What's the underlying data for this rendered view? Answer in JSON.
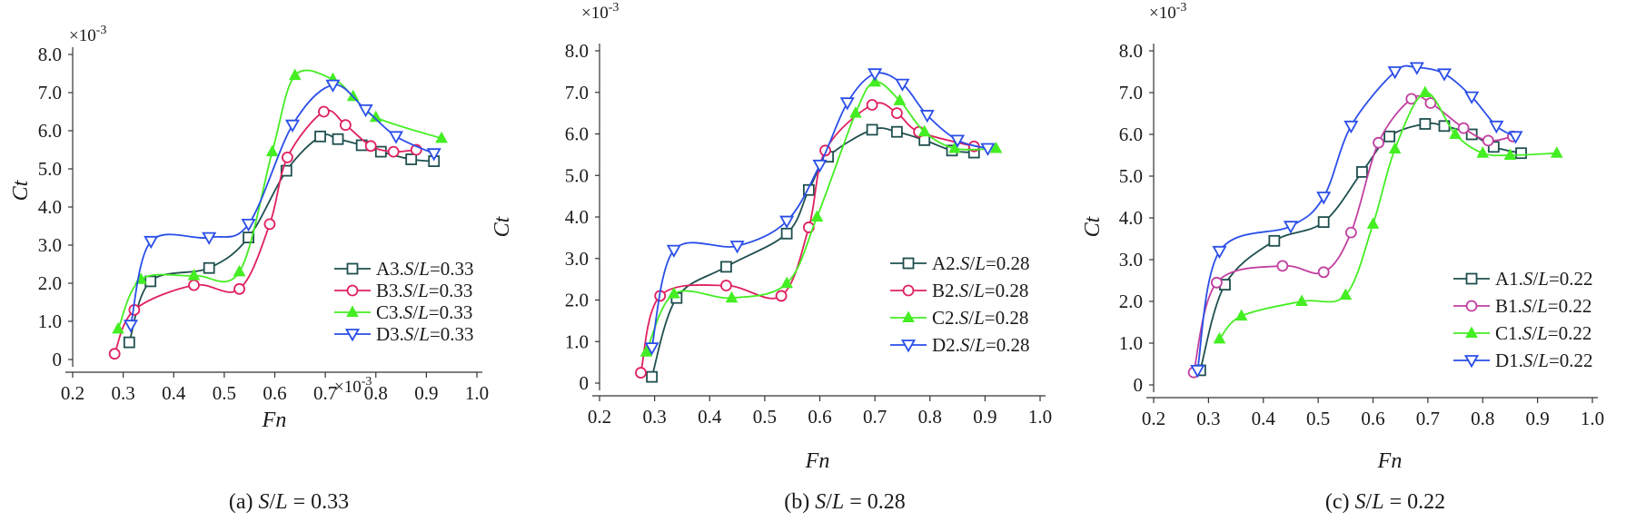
{
  "chart_data": [
    {
      "type": "line",
      "panel": "a",
      "caption_prefix": "(a) ",
      "caption_var": "S/L",
      "caption_rest": " = 0.33",
      "xlabel": "Fn",
      "ylabel": "Ct",
      "y_multiplier": "×10-3",
      "extra_multiplier": "×10-3",
      "xlim": [
        0.2,
        1.0
      ],
      "ylim": [
        0,
        8.0
      ],
      "xticks": [
        "0.2",
        "0.3",
        "0.4",
        "0.5",
        "0.6",
        "0.7",
        "0.8",
        "0.9",
        "1.0"
      ],
      "yticks": [
        "0",
        "1.0",
        "2.0",
        "3.0",
        "4.0",
        "5.0",
        "6.0",
        "7.0",
        "8.0"
      ],
      "legend_position": "lower-right",
      "series": [
        {
          "name": "A3.S/L=0.33",
          "label_prefix": "A3.",
          "label_value": "=0.33",
          "color": "#1f4f4f",
          "marker": "square",
          "x": [
            0.312,
            0.354,
            0.47,
            0.548,
            0.623,
            0.69,
            0.725,
            0.772,
            0.81,
            0.87,
            0.915
          ],
          "y": [
            0.45,
            2.05,
            2.4,
            3.2,
            4.95,
            5.85,
            5.78,
            5.62,
            5.45,
            5.25,
            5.2
          ]
        },
        {
          "name": "B3.S/L=0.33",
          "label_prefix": "B3.",
          "label_value": "=0.33",
          "color": "#e02060",
          "marker": "circle",
          "x": [
            0.283,
            0.322,
            0.44,
            0.53,
            0.59,
            0.625,
            0.697,
            0.74,
            0.79,
            0.835,
            0.88
          ],
          "y": [
            0.15,
            1.3,
            1.95,
            1.85,
            3.55,
            5.3,
            6.5,
            6.15,
            5.6,
            5.45,
            5.5
          ]
        },
        {
          "name": "C3.S/L=0.33",
          "label_prefix": "C3.",
          "label_value": "=0.33",
          "color": "#44ee22",
          "marker": "triangle-up",
          "x": [
            0.29,
            0.335,
            0.44,
            0.53,
            0.595,
            0.64,
            0.715,
            0.755,
            0.8,
            0.93
          ],
          "y": [
            0.8,
            2.1,
            2.2,
            2.3,
            5.45,
            7.45,
            7.35,
            6.9,
            6.35,
            5.8
          ]
        },
        {
          "name": "D3.S/L=0.33",
          "label_prefix": "D3.",
          "label_value": "=0.33",
          "color": "#2a4ee8",
          "marker": "triangle-down",
          "x": [
            0.315,
            0.355,
            0.47,
            0.548,
            0.635,
            0.715,
            0.78,
            0.84,
            0.915
          ],
          "y": [
            0.9,
            3.1,
            3.2,
            3.55,
            6.15,
            7.2,
            6.55,
            5.85,
            5.4
          ]
        }
      ]
    },
    {
      "type": "line",
      "panel": "b",
      "caption_prefix": "(b) ",
      "caption_var": "S/L",
      "caption_rest": " = 0.28",
      "xlabel": "Fn",
      "ylabel": "Ct",
      "y_multiplier": "×10-3",
      "xlim": [
        0.2,
        1.0
      ],
      "ylim": [
        0,
        8.0
      ],
      "xticks": [
        "0.2",
        "0.3",
        "0.4",
        "0.5",
        "0.6",
        "0.7",
        "0.8",
        "0.9",
        "1.0"
      ],
      "yticks": [
        "0",
        "1.0",
        "2.0",
        "3.0",
        "4.0",
        "5.0",
        "6.0",
        "7.0",
        "8.0"
      ],
      "legend_position": "lower-right",
      "series": [
        {
          "name": "A2.S/L=0.28",
          "label_prefix": "A2.",
          "label_value": "=0.28",
          "color": "#1f4f4f",
          "marker": "square",
          "x": [
            0.295,
            0.34,
            0.43,
            0.54,
            0.58,
            0.615,
            0.695,
            0.74,
            0.79,
            0.84,
            0.88
          ],
          "y": [
            0.15,
            2.05,
            2.8,
            3.6,
            4.65,
            5.45,
            6.1,
            6.05,
            5.85,
            5.6,
            5.55
          ]
        },
        {
          "name": "B2.S/L=0.28",
          "label_prefix": "B2.",
          "label_value": "=0.28",
          "color": "#e02060",
          "marker": "circle",
          "x": [
            0.275,
            0.31,
            0.43,
            0.53,
            0.58,
            0.61,
            0.695,
            0.74,
            0.78,
            0.88
          ],
          "y": [
            0.25,
            2.1,
            2.35,
            2.1,
            3.75,
            5.6,
            6.7,
            6.5,
            6.05,
            5.7
          ]
        },
        {
          "name": "C2.S/L=0.28",
          "label_prefix": "C2.",
          "label_value": "=0.28",
          "color": "#44ee22",
          "marker": "triangle-up",
          "x": [
            0.285,
            0.335,
            0.44,
            0.54,
            0.595,
            0.665,
            0.7,
            0.745,
            0.79,
            0.845,
            0.92
          ],
          "y": [
            0.75,
            2.15,
            2.05,
            2.4,
            4.0,
            6.5,
            7.25,
            6.8,
            6.05,
            5.65,
            5.65
          ]
        },
        {
          "name": "D2.S/L=0.28",
          "label_prefix": "D2.",
          "label_value": "=0.28",
          "color": "#2a4ee8",
          "marker": "triangle-down",
          "x": [
            0.295,
            0.335,
            0.45,
            0.54,
            0.6,
            0.65,
            0.7,
            0.75,
            0.795,
            0.85,
            0.905
          ],
          "y": [
            0.85,
            3.2,
            3.3,
            3.9,
            5.25,
            6.75,
            7.45,
            7.2,
            6.45,
            5.85,
            5.65
          ]
        }
      ]
    },
    {
      "type": "line",
      "panel": "c",
      "caption_prefix": "(c) ",
      "caption_var": "S/L",
      "caption_rest": " = 0.22",
      "xlabel": "Fn",
      "ylabel": "Ct",
      "y_multiplier": "×10-3",
      "xlim": [
        0.2,
        1.0
      ],
      "ylim": [
        0,
        8.0
      ],
      "xticks": [
        "0.2",
        "0.3",
        "0.4",
        "0.5",
        "0.6",
        "0.7",
        "0.8",
        "0.9",
        "1.0"
      ],
      "yticks": [
        "0",
        "1.0",
        "2.0",
        "3.0",
        "4.0",
        "5.0",
        "6.0",
        "7.0",
        "8.0"
      ],
      "legend_position": "lower-right",
      "series": [
        {
          "name": "A1.S/L=0.22",
          "label_prefix": "A1.",
          "label_value": "=0.22",
          "color": "#1f4f4f",
          "marker": "square",
          "x": [
            0.285,
            0.33,
            0.42,
            0.51,
            0.58,
            0.63,
            0.695,
            0.73,
            0.78,
            0.82,
            0.87
          ],
          "y": [
            0.35,
            2.4,
            3.45,
            3.9,
            5.1,
            5.95,
            6.25,
            6.2,
            6.0,
            5.7,
            5.55
          ]
        },
        {
          "name": "B1.S/L=0.22",
          "label_prefix": "B1.",
          "label_value": "=0.22",
          "color": "#c040a0",
          "marker": "circle",
          "x": [
            0.273,
            0.315,
            0.435,
            0.51,
            0.56,
            0.61,
            0.67,
            0.705,
            0.765,
            0.81,
            0.855
          ],
          "y": [
            0.3,
            2.45,
            2.85,
            2.7,
            3.65,
            5.8,
            6.85,
            6.75,
            6.15,
            5.85,
            5.95
          ]
        },
        {
          "name": "C1.S/L=0.22",
          "label_prefix": "C1.",
          "label_value": "=0.22",
          "color": "#44ee22",
          "marker": "triangle-up",
          "x": [
            0.32,
            0.36,
            0.47,
            0.55,
            0.6,
            0.64,
            0.695,
            0.75,
            0.8,
            0.85,
            0.935
          ],
          "y": [
            1.1,
            1.65,
            2.0,
            2.15,
            3.85,
            5.65,
            7.0,
            6.0,
            5.55,
            5.5,
            5.55
          ]
        },
        {
          "name": "D1.S/L=0.22",
          "label_prefix": "D1.",
          "label_value": "=0.22",
          "color": "#2a4ee8",
          "marker": "triangle-down",
          "x": [
            0.28,
            0.32,
            0.45,
            0.51,
            0.56,
            0.64,
            0.68,
            0.73,
            0.78,
            0.825,
            0.86
          ],
          "y": [
            0.35,
            3.2,
            3.8,
            4.5,
            6.2,
            7.5,
            7.6,
            7.45,
            6.9,
            6.2,
            5.95
          ]
        }
      ]
    }
  ]
}
